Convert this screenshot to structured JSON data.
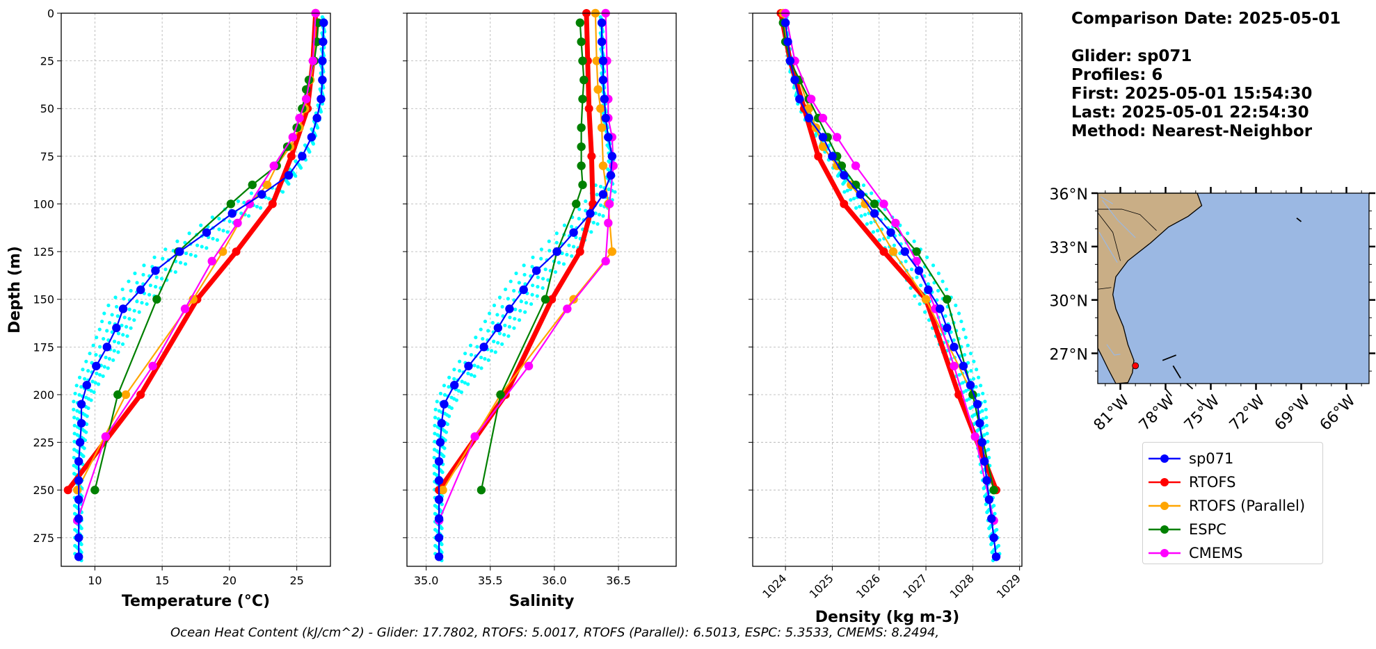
{
  "info": {
    "comparison_date": "Comparison Date: 2025-05-01",
    "glider": "Glider: sp071",
    "profiles": "Profiles: 6",
    "first": "First: 2025-05-01 15:54:30",
    "last": "Last: 2025-05-01 22:54:30",
    "method": "Method: Nearest-Neighbor"
  },
  "footer": "Ocean Heat Content (kJ/cm^2) - Glider: 17.7802,  RTOFS: 5.0017,  RTOFS (Parallel): 6.5013,  ESPC: 5.3533,  CMEMS: 8.2494,",
  "legend": [
    {
      "label": "sp071",
      "color": "#0000ff"
    },
    {
      "label": "RTOFS",
      "color": "#ff0000"
    },
    {
      "label": "RTOFS (Parallel)",
      "color": "#ffa500"
    },
    {
      "label": "ESPC",
      "color": "#008000"
    },
    {
      "label": "CMEMS",
      "color": "#ff00ff"
    }
  ],
  "map": {
    "lat_ticks": [
      "36°N",
      "33°N",
      "30°N",
      "27°N"
    ],
    "lon_ticks": [
      "81°W",
      "78°W",
      "75°W",
      "72°W",
      "69°W",
      "66°W"
    ],
    "land_color": "#c9ae86",
    "ocean_color": "#9bb8e3",
    "glider_location": {
      "lon": -80.0,
      "lat": 26.3
    }
  },
  "chart_data": [
    {
      "type": "line",
      "xlabel": "Temperature (°C)",
      "ylabel": "Depth (m)",
      "xlim": [
        7.5,
        27.5
      ],
      "xticks": [
        10,
        15,
        20,
        25
      ],
      "ylim": [
        290,
        0
      ],
      "yticks": [
        0,
        25,
        50,
        75,
        100,
        125,
        150,
        175,
        200,
        225,
        250,
        275
      ],
      "grid": true,
      "glider_scatter_color": "#00ffff",
      "series": [
        {
          "name": "sp071",
          "color": "#0000ff",
          "depth": [
            5,
            15,
            25,
            35,
            45,
            55,
            65,
            75,
            85,
            95,
            105,
            115,
            125,
            135,
            145,
            155,
            165,
            175,
            185,
            195,
            205,
            215,
            225,
            235,
            245,
            255,
            265,
            275,
            285
          ],
          "values": [
            27.0,
            26.95,
            26.9,
            26.9,
            26.8,
            26.5,
            26.1,
            25.4,
            24.4,
            22.4,
            20.2,
            18.3,
            16.3,
            14.5,
            13.4,
            12.1,
            11.6,
            10.9,
            10.1,
            9.4,
            9.0,
            9.0,
            8.9,
            8.8,
            8.8,
            8.8,
            8.8,
            8.8,
            8.8
          ]
        },
        {
          "name": "RTOFS",
          "color": "#ff0000",
          "depth": [
            0,
            25,
            50,
            75,
            100,
            125,
            150,
            200,
            250
          ],
          "values": [
            26.4,
            26.2,
            25.8,
            24.6,
            23.2,
            20.5,
            17.6,
            13.4,
            8.0
          ]
        },
        {
          "name": "RTOFS (Parallel)",
          "color": "#ffa500",
          "depth": [
            0,
            25,
            35,
            50,
            60,
            70,
            80,
            90,
            100,
            125,
            150,
            200,
            250
          ],
          "values": [
            26.4,
            26.3,
            26.0,
            25.6,
            25.2,
            24.5,
            23.5,
            22.8,
            21.5,
            19.5,
            17.3,
            12.3,
            8.7
          ]
        },
        {
          "name": "ESPC",
          "color": "#008000",
          "depth": [
            5,
            15,
            25,
            35,
            40,
            50,
            60,
            70,
            80,
            90,
            100,
            125,
            150,
            200,
            250
          ],
          "values": [
            26.6,
            26.5,
            26.3,
            25.9,
            25.7,
            25.4,
            25.0,
            24.3,
            23.5,
            21.7,
            20.1,
            16.2,
            14.6,
            11.7,
            10.0
          ]
        },
        {
          "name": "CMEMS",
          "color": "#ff00ff",
          "depth": [
            0,
            25,
            45,
            55,
            65,
            80,
            100,
            110,
            130,
            155,
            185,
            222,
            266
          ],
          "values": [
            26.4,
            26.2,
            25.7,
            25.2,
            24.7,
            23.3,
            21.5,
            20.6,
            18.7,
            16.7,
            14.3,
            10.8,
            8.7
          ]
        }
      ]
    },
    {
      "type": "line",
      "xlabel": "Salinity",
      "ylabel": "",
      "xlim": [
        34.85,
        36.95
      ],
      "xticks": [
        35.0,
        35.5,
        36.0,
        36.5
      ],
      "ylim": [
        290,
        0
      ],
      "grid": true,
      "glider_scatter_color": "#00ffff",
      "series": [
        {
          "name": "sp071",
          "color": "#0000ff",
          "depth": [
            5,
            15,
            25,
            35,
            45,
            55,
            65,
            75,
            85,
            95,
            105,
            115,
            125,
            135,
            145,
            155,
            165,
            175,
            185,
            195,
            205,
            215,
            225,
            235,
            245,
            255,
            265,
            275,
            285
          ],
          "values": [
            36.37,
            36.37,
            36.38,
            36.38,
            36.39,
            36.4,
            36.42,
            36.45,
            36.44,
            36.38,
            36.28,
            36.15,
            36.02,
            35.86,
            35.76,
            35.65,
            35.56,
            35.45,
            35.33,
            35.22,
            35.14,
            35.12,
            35.11,
            35.1,
            35.1,
            35.1,
            35.1,
            35.1,
            35.1
          ]
        },
        {
          "name": "RTOFS",
          "color": "#ff0000",
          "depth": [
            0,
            25,
            50,
            75,
            100,
            125,
            150,
            200,
            250
          ],
          "values": [
            36.25,
            36.26,
            36.27,
            36.29,
            36.3,
            36.2,
            35.98,
            35.62,
            35.1
          ]
        },
        {
          "name": "RTOFS (Parallel)",
          "color": "#ffa500",
          "depth": [
            0,
            25,
            40,
            50,
            60,
            80,
            100,
            125,
            150,
            200,
            250
          ],
          "values": [
            36.32,
            36.33,
            36.34,
            36.36,
            36.37,
            36.38,
            36.42,
            36.45,
            36.15,
            35.58,
            35.13
          ]
        },
        {
          "name": "ESPC",
          "color": "#008000",
          "depth": [
            5,
            15,
            25,
            35,
            45,
            60,
            70,
            80,
            90,
            100,
            125,
            150,
            200,
            250
          ],
          "values": [
            36.2,
            36.21,
            36.22,
            36.23,
            36.22,
            36.21,
            36.21,
            36.21,
            36.22,
            36.17,
            36.02,
            35.93,
            35.58,
            35.43
          ]
        },
        {
          "name": "CMEMS",
          "color": "#ff00ff",
          "depth": [
            0,
            25,
            45,
            55,
            65,
            80,
            100,
            110,
            130,
            155,
            185,
            222,
            266
          ],
          "values": [
            36.4,
            36.41,
            36.42,
            36.42,
            36.45,
            36.46,
            36.43,
            36.42,
            36.4,
            36.1,
            35.8,
            35.38,
            35.1
          ]
        }
      ]
    },
    {
      "type": "line",
      "xlabel": "Density (kg m-3)",
      "ylabel": "",
      "xlim": [
        1023.3,
        1029.05
      ],
      "xticks": [
        1024,
        1025,
        1026,
        1027,
        1028,
        1029
      ],
      "ylim": [
        290,
        0
      ],
      "grid": true,
      "glider_scatter_color": "#00ffff",
      "series": [
        {
          "name": "sp071",
          "color": "#0000ff",
          "depth": [
            5,
            15,
            25,
            35,
            45,
            55,
            65,
            75,
            85,
            95,
            105,
            115,
            125,
            135,
            145,
            155,
            165,
            175,
            185,
            195,
            205,
            215,
            225,
            235,
            245,
            255,
            265,
            275,
            285
          ],
          "values": [
            1024.0,
            1024.05,
            1024.1,
            1024.2,
            1024.3,
            1024.5,
            1024.8,
            1025.0,
            1025.25,
            1025.6,
            1025.9,
            1026.25,
            1026.55,
            1026.85,
            1027.05,
            1027.3,
            1027.45,
            1027.6,
            1027.8,
            1027.95,
            1028.1,
            1028.15,
            1028.2,
            1028.25,
            1028.3,
            1028.35,
            1028.4,
            1028.45,
            1028.5
          ]
        },
        {
          "name": "RTOFS",
          "color": "#ff0000",
          "depth": [
            0,
            25,
            50,
            75,
            100,
            125,
            150,
            200,
            250
          ],
          "values": [
            1023.9,
            1024.1,
            1024.4,
            1024.7,
            1025.25,
            1026.1,
            1027.0,
            1027.7,
            1028.5
          ]
        },
        {
          "name": "RTOFS (Parallel)",
          "color": "#ffa500",
          "depth": [
            0,
            25,
            35,
            50,
            60,
            70,
            80,
            90,
            100,
            125,
            150,
            200,
            250
          ],
          "values": [
            1023.95,
            1024.1,
            1024.3,
            1024.5,
            1024.65,
            1024.8,
            1025.1,
            1025.4,
            1025.7,
            1026.3,
            1027.0,
            1028.0,
            1028.45
          ]
        },
        {
          "name": "ESPC",
          "color": "#008000",
          "depth": [
            5,
            15,
            25,
            35,
            45,
            55,
            65,
            75,
            80,
            90,
            100,
            125,
            150,
            200,
            250
          ],
          "values": [
            1023.95,
            1024.0,
            1024.1,
            1024.3,
            1024.5,
            1024.7,
            1024.9,
            1025.1,
            1025.2,
            1025.5,
            1025.9,
            1026.8,
            1027.45,
            1028.0,
            1028.45
          ]
        },
        {
          "name": "CMEMS",
          "color": "#ff00ff",
          "depth": [
            0,
            25,
            45,
            55,
            65,
            80,
            100,
            110,
            130,
            155,
            185,
            222,
            266
          ],
          "values": [
            1024.0,
            1024.2,
            1024.55,
            1024.8,
            1025.1,
            1025.5,
            1026.1,
            1026.35,
            1026.8,
            1027.2,
            1027.6,
            1028.05,
            1028.45
          ]
        }
      ]
    }
  ]
}
